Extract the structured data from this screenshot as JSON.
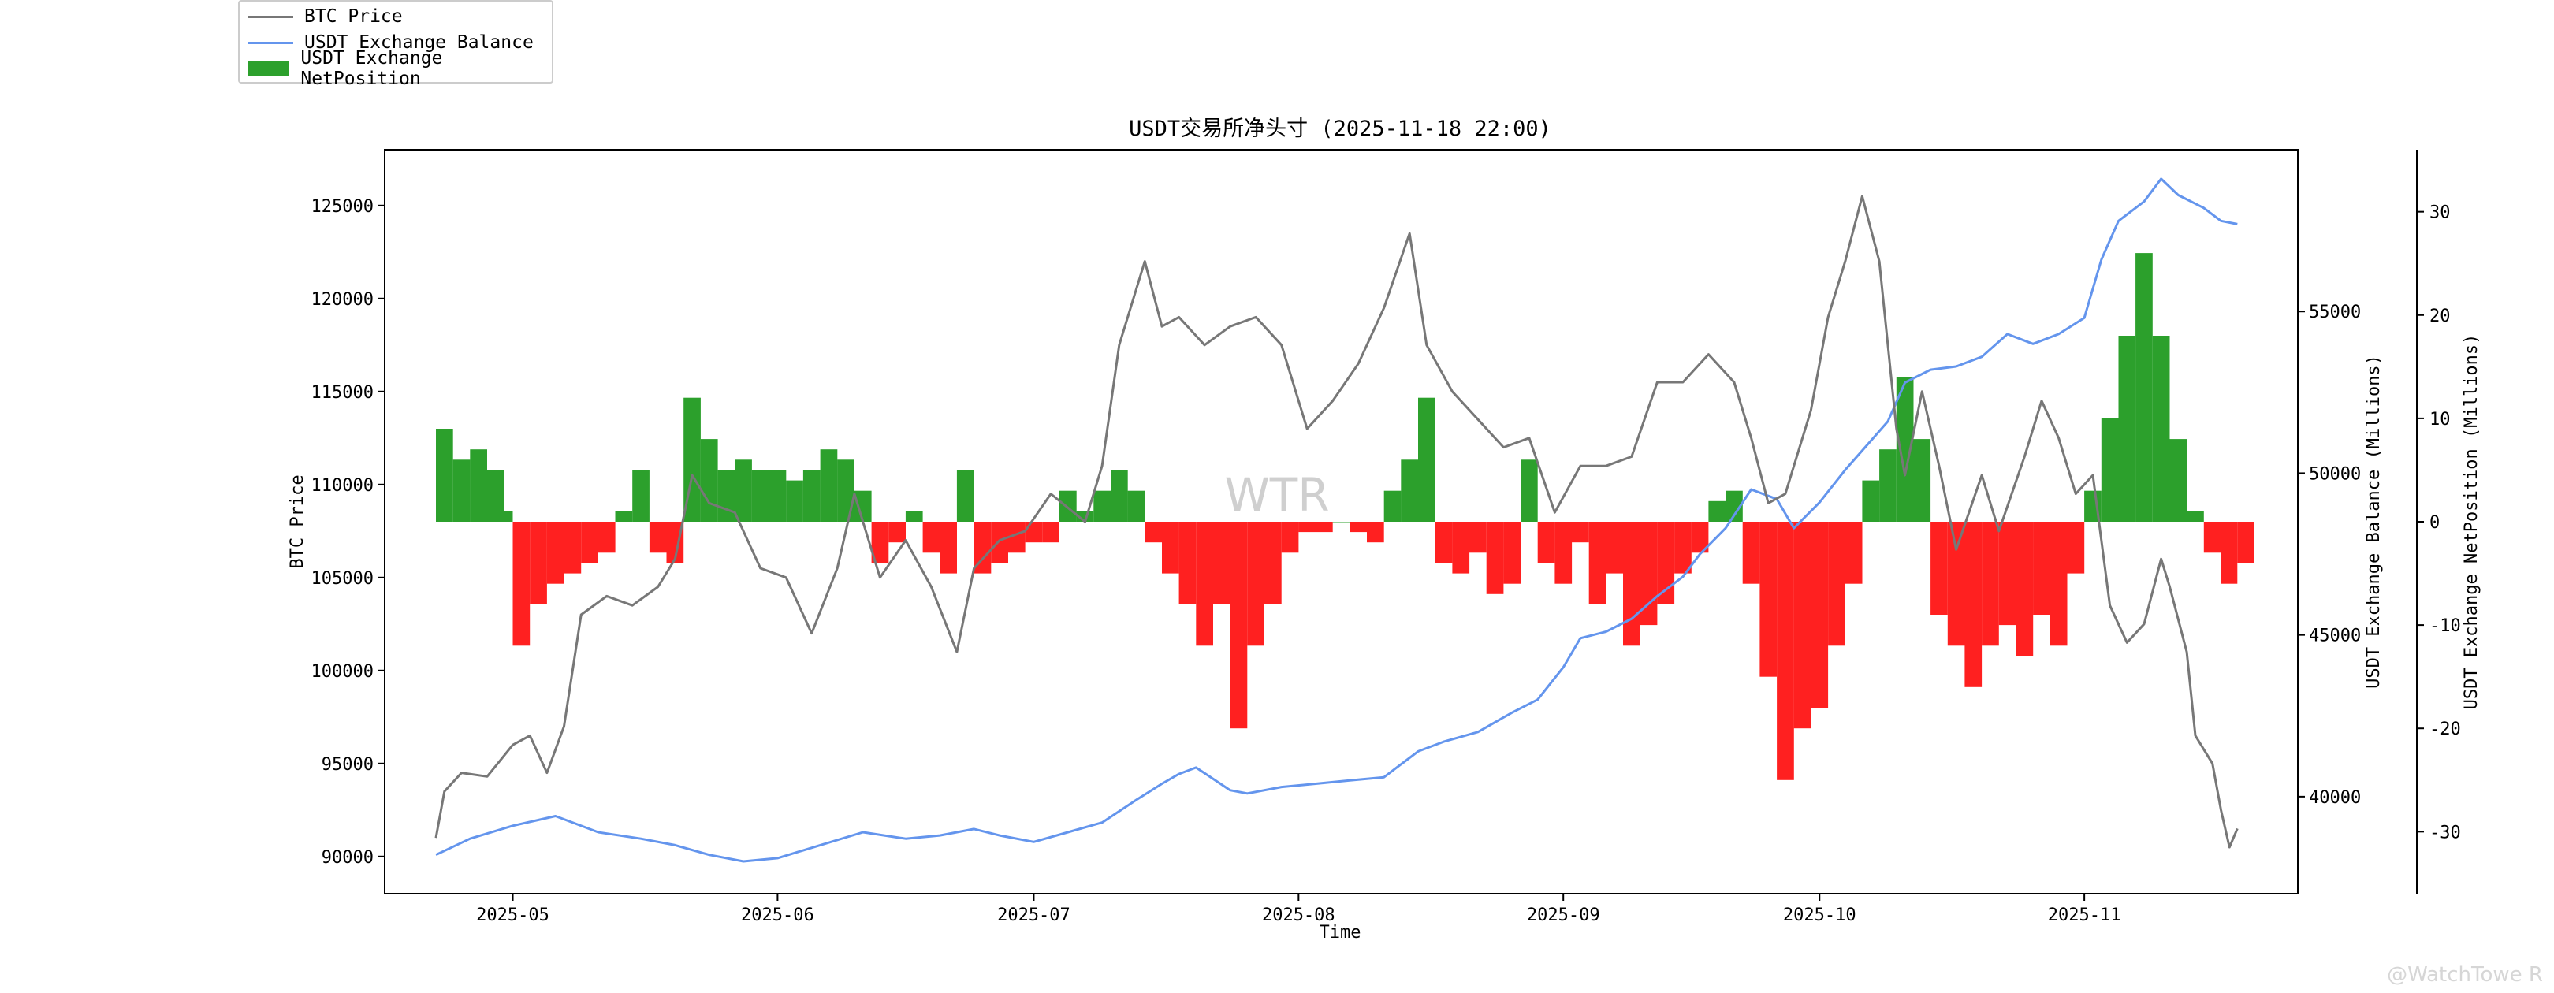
{
  "chart_data": {
    "type": "line+bar",
    "title": "USDT交易所净头寸 (2025-11-18 22:00)",
    "xlabel": "Time",
    "watermark": "WTR",
    "corner_watermark": "@WatchTowe R",
    "colors": {
      "btc": "#777777",
      "balance": "#6495ed",
      "net_positive": "#2ca02c",
      "net_negative": "#ff2020"
    },
    "x_ticks": [
      "2025-05",
      "2025-06",
      "2025-07",
      "2025-08",
      "2025-09",
      "2025-10",
      "2025-11"
    ],
    "x_tick_dates": [
      "2025-05-01",
      "2025-06-01",
      "2025-07-01",
      "2025-08-01",
      "2025-09-01",
      "2025-10-01",
      "2025-11-01"
    ],
    "x_range": [
      "2025-04-16",
      "2025-11-26"
    ],
    "axes": {
      "btc_price": {
        "label": "BTC Price",
        "range": [
          88000,
          128000
        ],
        "ticks": [
          "90000",
          "95000",
          "100000",
          "105000",
          "110000",
          "115000",
          "120000",
          "125000"
        ]
      },
      "balance": {
        "label": "USDT Exchange Balance (Millions)",
        "range": [
          37000,
          60000
        ],
        "ticks": [
          "40000",
          "45000",
          "50000",
          "55000"
        ]
      },
      "netposition": {
        "label": "USDT Exchange NetPosition (Millions)",
        "range": [
          -36,
          36
        ],
        "ticks": [
          "-30",
          "-20",
          "-10",
          "0",
          "10",
          "20",
          "30"
        ]
      }
    },
    "series": [
      {
        "name": "BTC Price",
        "kind": "line",
        "points": [
          [
            "2025-04-22",
            91000
          ],
          [
            "2025-04-23",
            93500
          ],
          [
            "2025-04-25",
            94500
          ],
          [
            "2025-04-28",
            94300
          ],
          [
            "2025-05-01",
            96000
          ],
          [
            "2025-05-03",
            96500
          ],
          [
            "2025-05-05",
            94500
          ],
          [
            "2025-05-07",
            97000
          ],
          [
            "2025-05-09",
            103000
          ],
          [
            "2025-05-12",
            104000
          ],
          [
            "2025-05-15",
            103500
          ],
          [
            "2025-05-18",
            104500
          ],
          [
            "2025-05-20",
            106000
          ],
          [
            "2025-05-22",
            110500
          ],
          [
            "2025-05-24",
            109000
          ],
          [
            "2025-05-27",
            108500
          ],
          [
            "2025-05-30",
            105500
          ],
          [
            "2025-06-02",
            105000
          ],
          [
            "2025-06-05",
            102000
          ],
          [
            "2025-06-08",
            105500
          ],
          [
            "2025-06-10",
            109500
          ],
          [
            "2025-06-13",
            105000
          ],
          [
            "2025-06-16",
            107000
          ],
          [
            "2025-06-19",
            104500
          ],
          [
            "2025-06-22",
            101000
          ],
          [
            "2025-06-24",
            105500
          ],
          [
            "2025-06-27",
            107000
          ],
          [
            "2025-06-30",
            107500
          ],
          [
            "2025-07-03",
            109500
          ],
          [
            "2025-07-07",
            108000
          ],
          [
            "2025-07-09",
            111000
          ],
          [
            "2025-07-11",
            117500
          ],
          [
            "2025-07-14",
            122000
          ],
          [
            "2025-07-16",
            118500
          ],
          [
            "2025-07-18",
            119000
          ],
          [
            "2025-07-21",
            117500
          ],
          [
            "2025-07-24",
            118500
          ],
          [
            "2025-07-27",
            119000
          ],
          [
            "2025-07-30",
            117500
          ],
          [
            "2025-08-02",
            113000
          ],
          [
            "2025-08-05",
            114500
          ],
          [
            "2025-08-08",
            116500
          ],
          [
            "2025-08-11",
            119500
          ],
          [
            "2025-08-14",
            123500
          ],
          [
            "2025-08-16",
            117500
          ],
          [
            "2025-08-19",
            115000
          ],
          [
            "2025-08-22",
            113500
          ],
          [
            "2025-08-25",
            112000
          ],
          [
            "2025-08-28",
            112500
          ],
          [
            "2025-08-31",
            108500
          ],
          [
            "2025-09-03",
            111000
          ],
          [
            "2025-09-06",
            111000
          ],
          [
            "2025-09-09",
            111500
          ],
          [
            "2025-09-12",
            115500
          ],
          [
            "2025-09-15",
            115500
          ],
          [
            "2025-09-18",
            117000
          ],
          [
            "2025-09-21",
            115500
          ],
          [
            "2025-09-23",
            112500
          ],
          [
            "2025-09-25",
            109000
          ],
          [
            "2025-09-27",
            109500
          ],
          [
            "2025-09-30",
            114000
          ],
          [
            "2025-10-02",
            119000
          ],
          [
            "2025-10-04",
            122000
          ],
          [
            "2025-10-06",
            125500
          ],
          [
            "2025-10-08",
            122000
          ],
          [
            "2025-10-10",
            113000
          ],
          [
            "2025-10-11",
            110500
          ],
          [
            "2025-10-13",
            115000
          ],
          [
            "2025-10-15",
            111000
          ],
          [
            "2025-10-17",
            106500
          ],
          [
            "2025-10-20",
            110500
          ],
          [
            "2025-10-22",
            107500
          ],
          [
            "2025-10-25",
            111500
          ],
          [
            "2025-10-27",
            114500
          ],
          [
            "2025-10-29",
            112500
          ],
          [
            "2025-10-31",
            109500
          ],
          [
            "2025-11-02",
            110500
          ],
          [
            "2025-11-04",
            103500
          ],
          [
            "2025-11-06",
            101500
          ],
          [
            "2025-11-08",
            102500
          ],
          [
            "2025-11-10",
            106000
          ],
          [
            "2025-11-11",
            104500
          ],
          [
            "2025-11-13",
            101000
          ],
          [
            "2025-11-14",
            96500
          ],
          [
            "2025-11-16",
            95000
          ],
          [
            "2025-11-17",
            92500
          ],
          [
            "2025-11-18",
            90500
          ],
          [
            "2025-11-18T22",
            91500
          ]
        ]
      },
      {
        "name": "USDT Exchange Balance",
        "kind": "line",
        "points": [
          [
            "2025-04-22",
            38200
          ],
          [
            "2025-04-26",
            38700
          ],
          [
            "2025-05-01",
            39100
          ],
          [
            "2025-05-06",
            39400
          ],
          [
            "2025-05-11",
            38900
          ],
          [
            "2025-05-16",
            38700
          ],
          [
            "2025-05-20",
            38500
          ],
          [
            "2025-05-24",
            38200
          ],
          [
            "2025-05-28",
            38000
          ],
          [
            "2025-06-01",
            38100
          ],
          [
            "2025-06-06",
            38500
          ],
          [
            "2025-06-11",
            38900
          ],
          [
            "2025-06-16",
            38700
          ],
          [
            "2025-06-20",
            38800
          ],
          [
            "2025-06-24",
            39000
          ],
          [
            "2025-06-27",
            38800
          ],
          [
            "2025-07-01",
            38600
          ],
          [
            "2025-07-05",
            38900
          ],
          [
            "2025-07-09",
            39200
          ],
          [
            "2025-07-13",
            39900
          ],
          [
            "2025-07-16",
            40400
          ],
          [
            "2025-07-18",
            40700
          ],
          [
            "2025-07-20",
            40900
          ],
          [
            "2025-07-24",
            40200
          ],
          [
            "2025-07-26",
            40100
          ],
          [
            "2025-07-30",
            40300
          ],
          [
            "2025-08-03",
            40400
          ],
          [
            "2025-08-07",
            40500
          ],
          [
            "2025-08-11",
            40600
          ],
          [
            "2025-08-15",
            41400
          ],
          [
            "2025-08-18",
            41700
          ],
          [
            "2025-08-22",
            42000
          ],
          [
            "2025-08-26",
            42600
          ],
          [
            "2025-08-29",
            43000
          ],
          [
            "2025-09-01",
            44000
          ],
          [
            "2025-09-03",
            44900
          ],
          [
            "2025-09-06",
            45100
          ],
          [
            "2025-09-09",
            45500
          ],
          [
            "2025-09-12",
            46200
          ],
          [
            "2025-09-15",
            46800
          ],
          [
            "2025-09-17",
            47500
          ],
          [
            "2025-09-20",
            48300
          ],
          [
            "2025-09-23",
            49500
          ],
          [
            "2025-09-26",
            49200
          ],
          [
            "2025-09-28",
            48300
          ],
          [
            "2025-10-01",
            49100
          ],
          [
            "2025-10-04",
            50100
          ],
          [
            "2025-10-07",
            51000
          ],
          [
            "2025-10-09",
            51600
          ],
          [
            "2025-10-11",
            52800
          ],
          [
            "2025-10-14",
            53200
          ],
          [
            "2025-10-17",
            53300
          ],
          [
            "2025-10-20",
            53600
          ],
          [
            "2025-10-23",
            54300
          ],
          [
            "2025-10-26",
            54000
          ],
          [
            "2025-10-29",
            54300
          ],
          [
            "2025-11-01",
            54800
          ],
          [
            "2025-11-03",
            56600
          ],
          [
            "2025-11-05",
            57800
          ],
          [
            "2025-11-08",
            58400
          ],
          [
            "2025-11-10",
            59100
          ],
          [
            "2025-11-12",
            58600
          ],
          [
            "2025-11-15",
            58200
          ],
          [
            "2025-11-17",
            57800
          ],
          [
            "2025-11-18T22",
            57700
          ]
        ]
      },
      {
        "name": "USDT Exchange NetPosition",
        "kind": "bar",
        "points": [
          [
            "2025-04-22",
            9
          ],
          [
            "2025-04-24",
            6
          ],
          [
            "2025-04-26",
            7
          ],
          [
            "2025-04-28",
            5
          ],
          [
            "2025-04-30",
            1
          ],
          [
            "2025-05-01",
            -12
          ],
          [
            "2025-05-03",
            -8
          ],
          [
            "2025-05-05",
            -6
          ],
          [
            "2025-05-07",
            -5
          ],
          [
            "2025-05-09",
            -4
          ],
          [
            "2025-05-11",
            -3
          ],
          [
            "2025-05-13",
            1
          ],
          [
            "2025-05-15",
            5
          ],
          [
            "2025-05-17",
            -3
          ],
          [
            "2025-05-19",
            -4
          ],
          [
            "2025-05-21",
            12
          ],
          [
            "2025-05-23",
            8
          ],
          [
            "2025-05-25",
            5
          ],
          [
            "2025-05-27",
            6
          ],
          [
            "2025-05-29",
            5
          ],
          [
            "2025-05-31",
            5
          ],
          [
            "2025-06-02",
            4
          ],
          [
            "2025-06-04",
            5
          ],
          [
            "2025-06-06",
            7
          ],
          [
            "2025-06-08",
            6
          ],
          [
            "2025-06-10",
            3
          ],
          [
            "2025-06-12",
            -4
          ],
          [
            "2025-06-14",
            -2
          ],
          [
            "2025-06-16",
            1
          ],
          [
            "2025-06-18",
            -3
          ],
          [
            "2025-06-20",
            -5
          ],
          [
            "2025-06-22",
            5
          ],
          [
            "2025-06-24",
            -5
          ],
          [
            "2025-06-26",
            -4
          ],
          [
            "2025-06-28",
            -3
          ],
          [
            "2025-06-30",
            -2
          ],
          [
            "2025-07-02",
            -2
          ],
          [
            "2025-07-04",
            3
          ],
          [
            "2025-07-06",
            1
          ],
          [
            "2025-07-08",
            3
          ],
          [
            "2025-07-10",
            5
          ],
          [
            "2025-07-12",
            3
          ],
          [
            "2025-07-14",
            -2
          ],
          [
            "2025-07-16",
            -5
          ],
          [
            "2025-07-18",
            -8
          ],
          [
            "2025-07-20",
            -12
          ],
          [
            "2025-07-22",
            -8
          ],
          [
            "2025-07-24",
            -20
          ],
          [
            "2025-07-26",
            -12
          ],
          [
            "2025-07-28",
            -8
          ],
          [
            "2025-07-30",
            -3
          ],
          [
            "2025-08-01",
            -1
          ],
          [
            "2025-08-03",
            -1
          ],
          [
            "2025-08-05",
            0
          ],
          [
            "2025-08-07",
            -1
          ],
          [
            "2025-08-09",
            -2
          ],
          [
            "2025-08-11",
            3
          ],
          [
            "2025-08-13",
            6
          ],
          [
            "2025-08-15",
            12
          ],
          [
            "2025-08-17",
            -4
          ],
          [
            "2025-08-19",
            -5
          ],
          [
            "2025-08-21",
            -3
          ],
          [
            "2025-08-23",
            -7
          ],
          [
            "2025-08-25",
            -6
          ],
          [
            "2025-08-27",
            6
          ],
          [
            "2025-08-29",
            -4
          ],
          [
            "2025-08-31",
            -6
          ],
          [
            "2025-09-02",
            -2
          ],
          [
            "2025-09-04",
            -8
          ],
          [
            "2025-09-06",
            -5
          ],
          [
            "2025-09-08",
            -12
          ],
          [
            "2025-09-10",
            -10
          ],
          [
            "2025-09-12",
            -8
          ],
          [
            "2025-09-14",
            -5
          ],
          [
            "2025-09-16",
            -3
          ],
          [
            "2025-09-18",
            2
          ],
          [
            "2025-09-20",
            3
          ],
          [
            "2025-09-22",
            -6
          ],
          [
            "2025-09-24",
            -15
          ],
          [
            "2025-09-26",
            -25
          ],
          [
            "2025-09-28",
            -20
          ],
          [
            "2025-09-30",
            -18
          ],
          [
            "2025-10-02",
            -12
          ],
          [
            "2025-10-04",
            -6
          ],
          [
            "2025-10-06",
            4
          ],
          [
            "2025-10-08",
            7
          ],
          [
            "2025-10-10",
            14
          ],
          [
            "2025-10-12",
            8
          ],
          [
            "2025-10-14",
            -9
          ],
          [
            "2025-10-16",
            -12
          ],
          [
            "2025-10-18",
            -16
          ],
          [
            "2025-10-20",
            -12
          ],
          [
            "2025-10-22",
            -10
          ],
          [
            "2025-10-24",
            -13
          ],
          [
            "2025-10-26",
            -9
          ],
          [
            "2025-10-28",
            -12
          ],
          [
            "2025-10-30",
            -5
          ],
          [
            "2025-11-01",
            3
          ],
          [
            "2025-11-03",
            10
          ],
          [
            "2025-11-05",
            18
          ],
          [
            "2025-11-07",
            26
          ],
          [
            "2025-11-09",
            18
          ],
          [
            "2025-11-11",
            8
          ],
          [
            "2025-11-13",
            1
          ],
          [
            "2025-11-15",
            -3
          ],
          [
            "2025-11-17",
            -6
          ],
          [
            "2025-11-18T22",
            -4
          ]
        ]
      }
    ],
    "legend_position": "top-left, outside plot",
    "grid": false
  }
}
